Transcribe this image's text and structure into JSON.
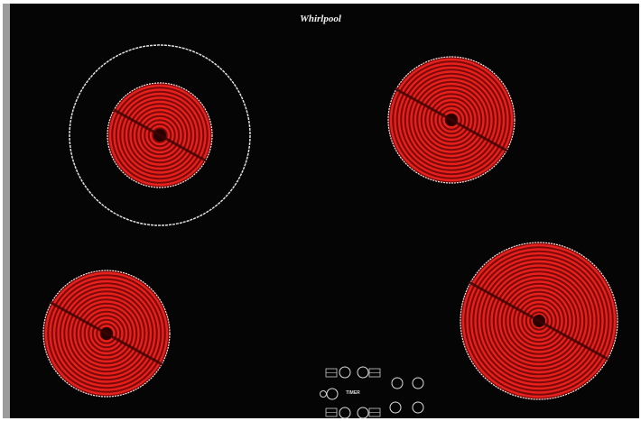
{
  "brand": "Whirlpool",
  "controls": {
    "timer_label": "TIMER"
  }
}
